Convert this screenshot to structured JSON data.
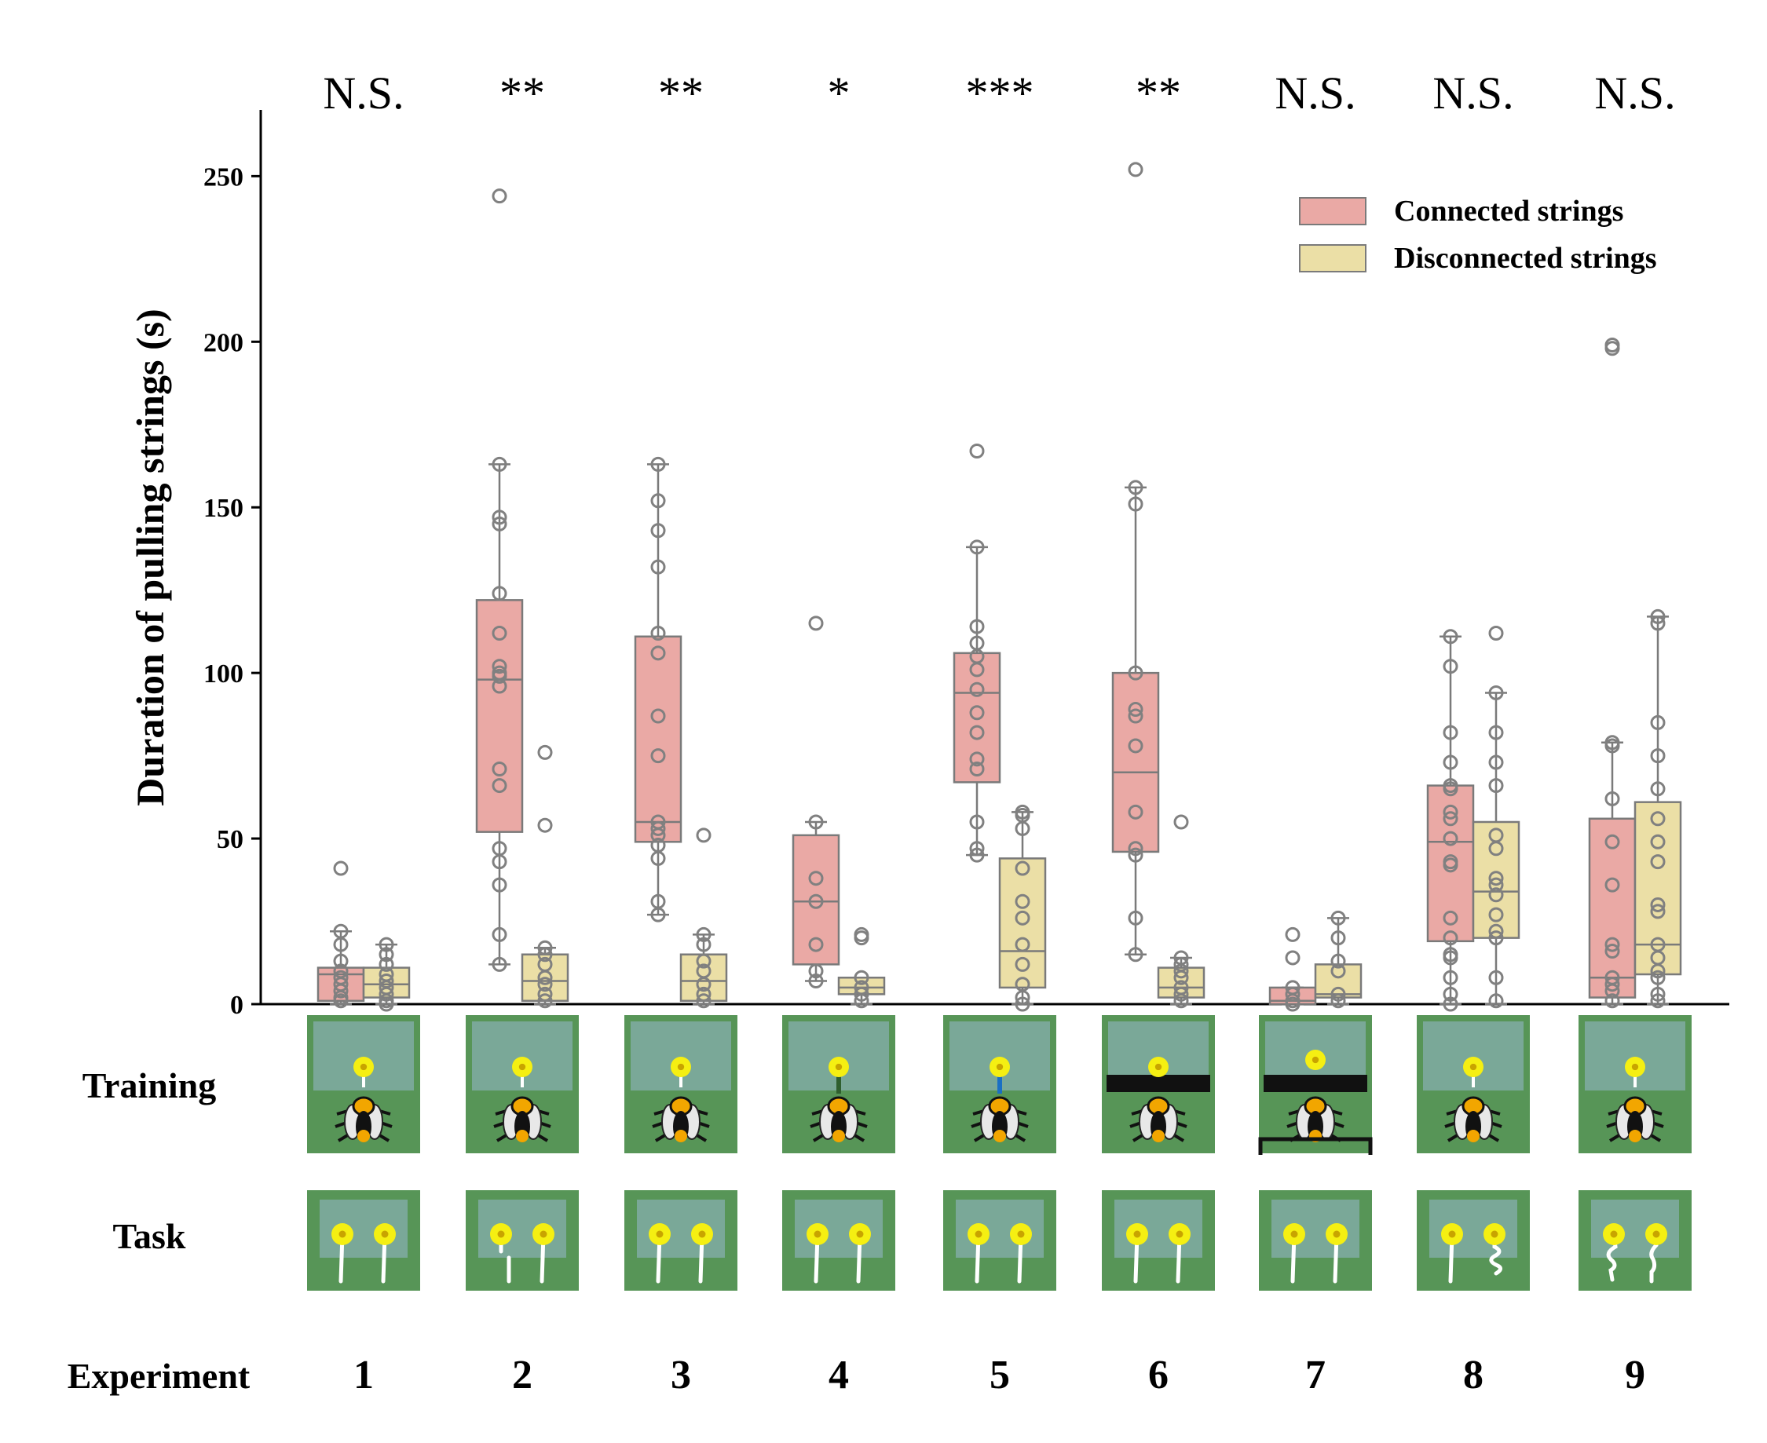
{
  "chart_data": {
    "type": "box",
    "ylabel": "Duration of pulling strings (s)",
    "ylim": [
      0,
      270
    ],
    "yticks": [
      0,
      50,
      100,
      150,
      200,
      250
    ],
    "legend_position": "top-right",
    "legend": [
      {
        "label": "Connected strings",
        "color": "#eaa9a5"
      },
      {
        "label": "Disconnected strings",
        "color": "#ebdfa6"
      }
    ],
    "experiments": [
      {
        "label": "1",
        "significance": "N.S.",
        "connected": {
          "q1": 1,
          "median": 9,
          "q3": 11,
          "whisker_low": 0,
          "whisker_high": 22,
          "points": [
            41,
            22,
            18,
            13,
            10,
            8,
            6,
            4,
            2,
            1
          ]
        },
        "disconnected": {
          "q1": 2,
          "median": 6,
          "q3": 11,
          "whisker_low": 0,
          "whisker_high": 18,
          "points": [
            18,
            15,
            12,
            9,
            7,
            5,
            3,
            1,
            0
          ]
        }
      },
      {
        "label": "2",
        "significance": "**",
        "connected": {
          "q1": 52,
          "median": 98,
          "q3": 122,
          "whisker_low": 12,
          "whisker_high": 163,
          "points": [
            244,
            163,
            147,
            145,
            124,
            112,
            102,
            100,
            99,
            96,
            71,
            66,
            47,
            43,
            36,
            21,
            12
          ]
        },
        "disconnected": {
          "q1": 1,
          "median": 7,
          "q3": 15,
          "whisker_low": 0,
          "whisker_high": 17,
          "points": [
            76,
            54,
            17,
            15,
            12,
            8,
            6,
            3,
            1
          ]
        }
      },
      {
        "label": "3",
        "significance": "**",
        "connected": {
          "q1": 49,
          "median": 55,
          "q3": 111,
          "whisker_low": 27,
          "whisker_high": 163,
          "points": [
            163,
            152,
            143,
            132,
            112,
            106,
            87,
            75,
            55,
            53,
            51,
            48,
            44,
            31,
            27
          ]
        },
        "disconnected": {
          "q1": 1,
          "median": 7,
          "q3": 15,
          "whisker_low": 0,
          "whisker_high": 21,
          "points": [
            51,
            21,
            18,
            13,
            10,
            6,
            3,
            1
          ]
        }
      },
      {
        "label": "4",
        "significance": "*",
        "connected": {
          "q1": 12,
          "median": 31,
          "q3": 51,
          "whisker_low": 7,
          "whisker_high": 55,
          "points": [
            115,
            55,
            38,
            31,
            18,
            10,
            7
          ]
        },
        "disconnected": {
          "q1": 3,
          "median": 5,
          "q3": 8,
          "whisker_low": 0,
          "whisker_high": 8,
          "points": [
            21,
            20,
            8,
            5,
            3,
            1
          ]
        }
      },
      {
        "label": "5",
        "significance": "***",
        "connected": {
          "q1": 67,
          "median": 94,
          "q3": 106,
          "whisker_low": 45,
          "whisker_high": 138,
          "points": [
            167,
            138,
            114,
            109,
            105,
            101,
            95,
            88,
            82,
            74,
            71,
            55,
            47,
            45
          ]
        },
        "disconnected": {
          "q1": 5,
          "median": 16,
          "q3": 44,
          "whisker_low": 0,
          "whisker_high": 58,
          "points": [
            58,
            57,
            53,
            41,
            31,
            26,
            18,
            12,
            6,
            2,
            0
          ]
        }
      },
      {
        "label": "6",
        "significance": "**",
        "connected": {
          "q1": 46,
          "median": 70,
          "q3": 100,
          "whisker_low": 15,
          "whisker_high": 156,
          "points": [
            252,
            156,
            151,
            100,
            89,
            87,
            78,
            58,
            47,
            45,
            26,
            15
          ]
        },
        "disconnected": {
          "q1": 2,
          "median": 5,
          "q3": 11,
          "whisker_low": 0,
          "whisker_high": 14,
          "points": [
            55,
            14,
            12,
            10,
            8,
            5,
            3,
            1
          ]
        }
      },
      {
        "label": "7",
        "significance": "N.S.",
        "connected": {
          "q1": 0,
          "median": 1,
          "q3": 5,
          "whisker_low": 0,
          "whisker_high": 5,
          "points": [
            21,
            14,
            5,
            3,
            1,
            0
          ]
        },
        "disconnected": {
          "q1": 2,
          "median": 3,
          "q3": 12,
          "whisker_low": 0,
          "whisker_high": 26,
          "points": [
            26,
            20,
            13,
            10,
            3,
            1
          ]
        }
      },
      {
        "label": "8",
        "significance": "N.S.",
        "connected": {
          "q1": 19,
          "median": 49,
          "q3": 66,
          "whisker_low": 0,
          "whisker_high": 111,
          "points": [
            111,
            102,
            82,
            73,
            66,
            65,
            58,
            56,
            50,
            43,
            42,
            26,
            20,
            15,
            14,
            8,
            3,
            0
          ]
        },
        "disconnected": {
          "q1": 20,
          "median": 34,
          "q3": 55,
          "whisker_low": 0,
          "whisker_high": 94,
          "points": [
            112,
            94,
            82,
            73,
            66,
            51,
            47,
            38,
            36,
            33,
            27,
            22,
            20,
            8,
            1
          ]
        }
      },
      {
        "label": "9",
        "significance": "N.S.",
        "connected": {
          "q1": 2,
          "median": 8,
          "q3": 56,
          "whisker_low": 0,
          "whisker_high": 79,
          "points": [
            199,
            198,
            79,
            78,
            62,
            49,
            36,
            18,
            16,
            8,
            6,
            4,
            1
          ]
        },
        "disconnected": {
          "q1": 9,
          "median": 18,
          "q3": 61,
          "whisker_low": 0,
          "whisker_high": 117,
          "points": [
            117,
            115,
            85,
            75,
            65,
            56,
            49,
            43,
            30,
            28,
            18,
            14,
            10,
            8,
            3,
            1
          ]
        }
      }
    ]
  },
  "rows": {
    "training_label": "Training",
    "task_label": "Task",
    "experiment_label": "Experiment"
  },
  "training_variants": [
    "plain",
    "plain",
    "plain",
    "stem",
    "blue-stem",
    "bar",
    "bar-frame",
    "plain",
    "plain"
  ],
  "task_variants": [
    "straight",
    "gap",
    "straight",
    "straight",
    "straight",
    "straight",
    "straight",
    "coil-right",
    "coil-both"
  ],
  "colors": {
    "connected": "#eaa9a5",
    "disconnected": "#ebdfa6",
    "box_edge": "#7a7a7a",
    "point": "#808080",
    "panel_bg": "#579557",
    "panel_inner": "#7aa898",
    "flower": "#f5ef12",
    "flower_center": "#c8a400"
  }
}
